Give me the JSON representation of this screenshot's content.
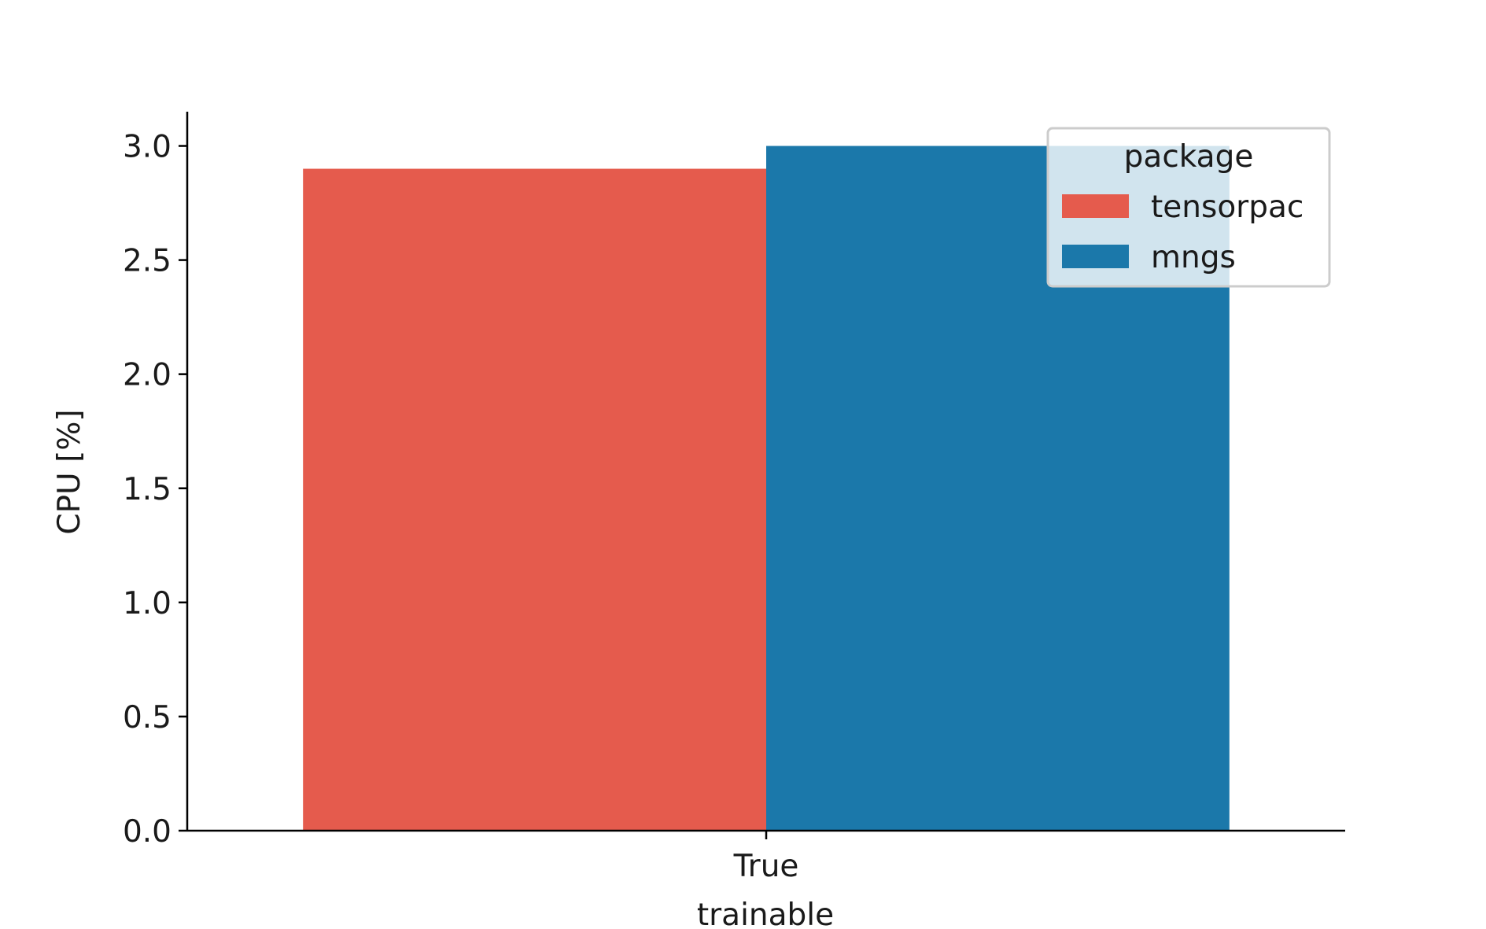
{
  "chart_data": {
    "type": "bar",
    "categories": [
      "True"
    ],
    "xlabel": "trainable",
    "ylabel": "CPU [%]",
    "ylim": [
      0,
      3.15
    ],
    "yticks": [
      "0.0",
      "0.5",
      "1.0",
      "1.5",
      "2.0",
      "2.5",
      "3.0"
    ],
    "series": [
      {
        "name": "tensorpac",
        "values": [
          2.9
        ],
        "color": "#e55b4d"
      },
      {
        "name": "mngs",
        "values": [
          3.0
        ],
        "color": "#1b78aa"
      }
    ],
    "legend": {
      "title": "package",
      "placement": "top-right"
    },
    "grid": false
  }
}
